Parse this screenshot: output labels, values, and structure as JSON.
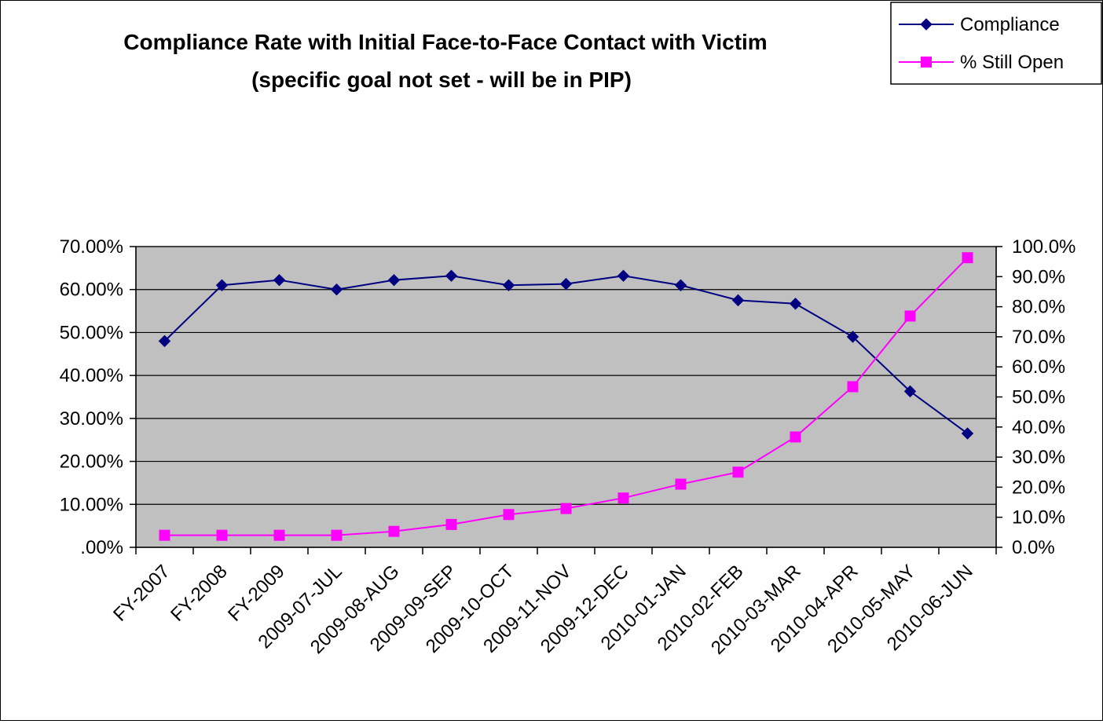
{
  "chart_data": {
    "type": "line",
    "title": "Compliance Rate with Initial Face-to-Face Contact with Victim",
    "subtitle": "(specific goal not set - will be in PIP)",
    "categories": [
      "FY-2007",
      "FY-2008",
      "FY-2009",
      "2009-07-JUL",
      "2009-08-AUG",
      "2009-09-SEP",
      "2009-10-OCT",
      "2009-11-NOV",
      "2009-12-DEC",
      "2010-01-JAN",
      "2010-02-FEB",
      "2010-03-MAR",
      "2010-04-APR",
      "2010-05-MAY",
      "2010-06-JUN"
    ],
    "series": [
      {
        "name": "Compliance",
        "axis": "left",
        "color": "#000080",
        "marker": "diamond",
        "values": [
          48.0,
          61.0,
          62.2,
          60.0,
          62.2,
          63.2,
          61.0,
          61.3,
          63.2,
          61.0,
          57.5,
          56.7,
          49.0,
          36.3,
          26.5
        ]
      },
      {
        "name": "% Still Open",
        "axis": "right",
        "color": "#FF00FF",
        "marker": "square",
        "values": [
          4.0,
          4.0,
          4.0,
          4.0,
          5.3,
          7.6,
          10.9,
          12.9,
          16.4,
          21.0,
          25.0,
          36.7,
          53.4,
          76.9,
          96.3
        ]
      }
    ],
    "y_left": {
      "ylim": [
        0,
        70
      ],
      "ticks": [
        ".00%",
        "10.00%",
        "20.00%",
        "30.00%",
        "40.00%",
        "50.00%",
        "60.00%",
        "70.00%"
      ]
    },
    "y_right": {
      "ylim": [
        0,
        100
      ],
      "ticks": [
        "0.0%",
        "10.0%",
        "20.0%",
        "30.0%",
        "40.0%",
        "50.0%",
        "60.0%",
        "70.0%",
        "80.0%",
        "90.0%",
        "100.0%"
      ]
    },
    "plot_background": "#C0C0C0",
    "grid": "horizontal",
    "legend_position": "top-right"
  }
}
